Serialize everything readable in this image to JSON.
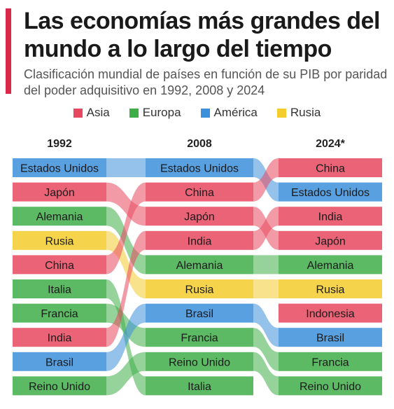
{
  "title": "Las economías más grandes del mundo a lo largo del tiempo",
  "subtitle": "Clasificación mundial de países en función de su PIB por paridad del poder adquisitivo en 1992, 2008 y 2024",
  "colors": {
    "accent": "#d8294a",
    "Asia": "#e8485f",
    "Europa": "#3fae49",
    "América": "#3c8fdb",
    "Rusia": "#f3cc2d"
  },
  "legend": [
    {
      "label": "Asia",
      "region": "Asia"
    },
    {
      "label": "Europa",
      "region": "Europa"
    },
    {
      "label": "América",
      "region": "América"
    },
    {
      "label": "Rusia",
      "region": "Rusia"
    }
  ],
  "chart_data": {
    "type": "table",
    "columns": [
      {
        "label": "1992",
        "countries": [
          "Estados Unidos",
          "Japón",
          "Alemania",
          "Rusia",
          "China",
          "Italia",
          "Francia",
          "India",
          "Brasil",
          "Reino Unido"
        ]
      },
      {
        "label": "2008",
        "countries": [
          "Estados Unidos",
          "China",
          "Japón",
          "India",
          "Alemania",
          "Rusia",
          "Brasil",
          "Francia",
          "Reino Unido",
          "Italia"
        ]
      },
      {
        "label": "2024*",
        "countries": [
          "China",
          "Estados Unidos",
          "India",
          "Japón",
          "Alemania",
          "Rusia",
          "Indonesia",
          "Brasil",
          "Francia",
          "Reino Unido"
        ]
      }
    ],
    "regions": {
      "Estados Unidos": "América",
      "Brasil": "América",
      "China": "Asia",
      "Japón": "Asia",
      "India": "Asia",
      "Indonesia": "Asia",
      "Alemania": "Europa",
      "Italia": "Europa",
      "Francia": "Europa",
      "Reino Unido": "Europa",
      "Rusia": "Rusia"
    }
  }
}
